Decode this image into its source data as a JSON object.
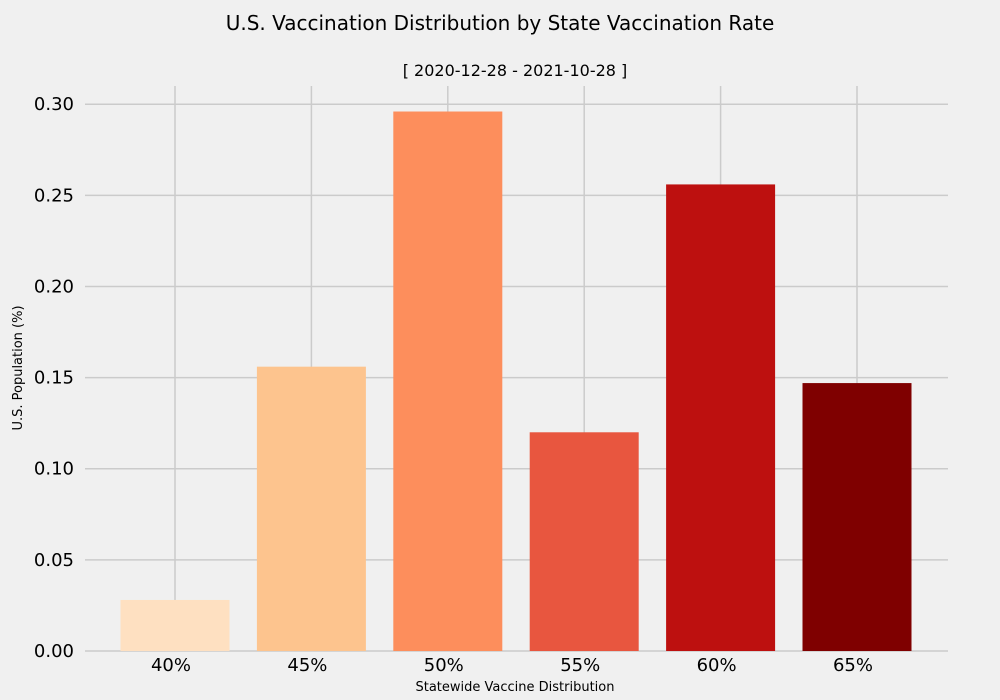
{
  "chart_data": {
    "type": "bar",
    "title": "U.S. Vaccination Distribution by State Vaccination Rate",
    "subtitle": "[ 2020-12-28 - 2021-10-28 ]",
    "xlabel": "Statewide Vaccine Distribution",
    "ylabel": "U.S. Population (%)",
    "categories": [
      "40%",
      "45%",
      "50%",
      "55%",
      "60%",
      "65%"
    ],
    "values": [
      0.028,
      0.156,
      0.296,
      0.12,
      0.256,
      0.147
    ],
    "colors": [
      "#fee0c1",
      "#fdc48e",
      "#fd8e5c",
      "#e8563f",
      "#bd100f",
      "#7f0000"
    ],
    "ylim": [
      0,
      0.31
    ],
    "yticks": [
      0.0,
      0.05,
      0.1,
      0.15,
      0.2,
      0.25,
      0.3
    ],
    "ytick_labels": [
      "0.00",
      "0.05",
      "0.10",
      "0.15",
      "0.20",
      "0.25",
      "0.30"
    ],
    "grid": true,
    "background": "#f0f0f0",
    "grid_color": "#cbcbcb"
  }
}
